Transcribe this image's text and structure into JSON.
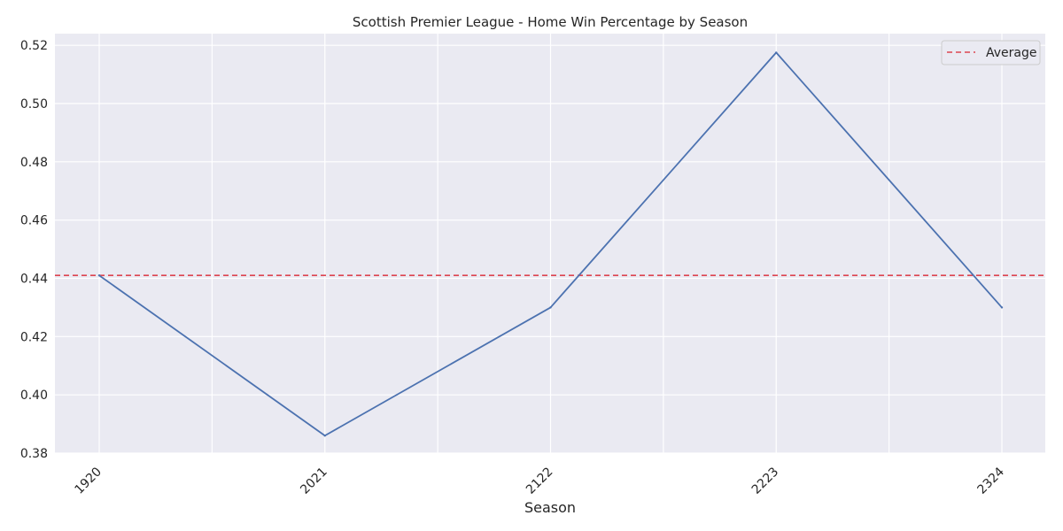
{
  "chart_data": {
    "type": "line",
    "title": "Scottish Premier League - Home Win Percentage by Season",
    "xlabel": "Season",
    "ylabel": "",
    "categories": [
      "1920",
      "2021",
      "2122",
      "2223",
      "2324"
    ],
    "series": [
      {
        "values": [
          0.441,
          0.386,
          0.43,
          0.5175,
          0.43
        ],
        "color": "#4c72b0"
      }
    ],
    "reference_lines": [
      {
        "name": "Average",
        "value": 0.441,
        "color": "#dd4450",
        "style": "dashed"
      }
    ],
    "ylim": [
      0.38,
      0.524
    ],
    "yticks": [
      "0.38",
      "0.40",
      "0.42",
      "0.44",
      "0.46",
      "0.48",
      "0.50",
      "0.52"
    ],
    "grid": true,
    "legend": "top-right",
    "background_color": "#eaeaf2",
    "grid_color": "#ffffff"
  }
}
